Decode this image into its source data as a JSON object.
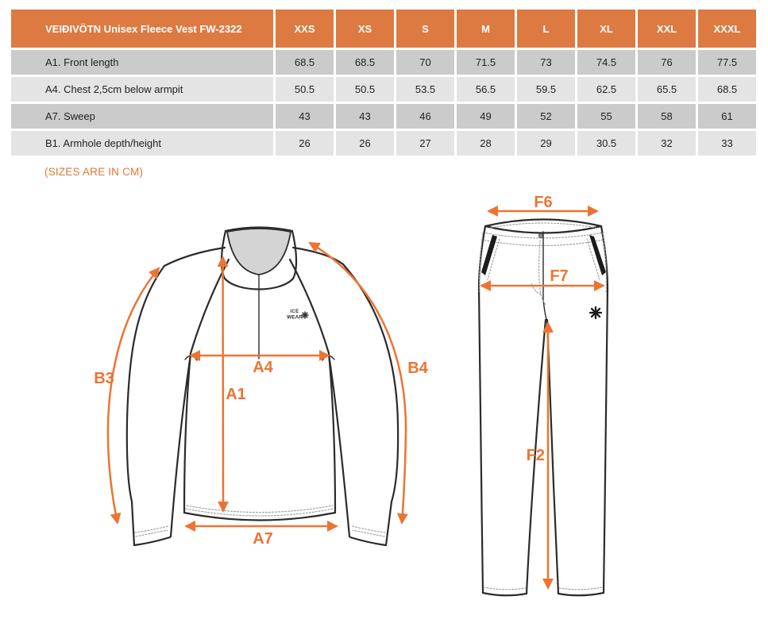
{
  "size_chart": {
    "title": "VEIÐIVÖTN Unisex Fleece Vest FW-2322",
    "size_headers": [
      "XXS",
      "XS",
      "S",
      "M",
      "L",
      "XL",
      "XXL",
      "XXXL"
    ],
    "rows": [
      {
        "label": "A1. Front length",
        "values": [
          "68.5",
          "68.5",
          "70",
          "71.5",
          "73",
          "74.5",
          "76",
          "77.5"
        ]
      },
      {
        "label": "A4. Chest 2,5cm below armpit",
        "values": [
          "50.5",
          "50.5",
          "53.5",
          "56.5",
          "59.5",
          "62.5",
          "65.5",
          "68.5"
        ]
      },
      {
        "label": "A7. Sweep",
        "values": [
          "43",
          "43",
          "46",
          "49",
          "52",
          "55",
          "58",
          "61"
        ]
      },
      {
        "label": "B1. Armhole depth/height",
        "values": [
          "26",
          "26",
          "27",
          "28",
          "29",
          "30.5",
          "32",
          "33"
        ]
      }
    ]
  },
  "note": "(SIZES ARE IN CM)",
  "garment_diagram": {
    "labels": {
      "b3": "B3",
      "a4": "A4",
      "a1": "A1",
      "b4": "B4",
      "a7": "A7"
    },
    "logo": {
      "line1": "ICE",
      "line2": "WEAR"
    }
  },
  "pants_diagram": {
    "labels": {
      "f6": "F6",
      "f7": "F7",
      "f2": "F2"
    }
  },
  "colors": {
    "accent_orange": "#EC7433",
    "header_orange": "#DC7A42",
    "note_orange": "#E0763C",
    "row_dark": "#CBCBCB",
    "row_light": "#E4E4E4",
    "outline": "#2B2B2B",
    "collar_fill": "#D4D4D4"
  }
}
